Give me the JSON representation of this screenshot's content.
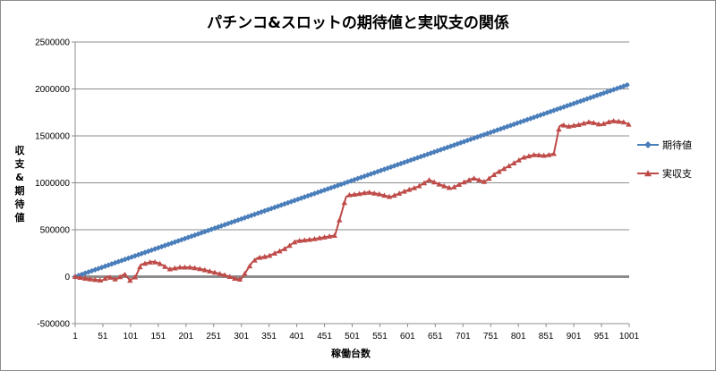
{
  "chart_data": {
    "type": "line",
    "title": "パチンコ&スロットの期待値と実収支の関係",
    "xlabel": "稼働台数",
    "ylabel": "収支&期待値",
    "ylim": [
      -500000,
      2500000
    ],
    "xlim": [
      1,
      1001
    ],
    "xticks": [
      1,
      51,
      101,
      151,
      201,
      251,
      301,
      351,
      401,
      451,
      501,
      551,
      601,
      651,
      701,
      751,
      801,
      851,
      901,
      951,
      1001
    ],
    "xtick_labels": [
      "1",
      "51",
      "101",
      "151",
      "201",
      "251",
      "301",
      "351",
      "401",
      "451",
      "501",
      "551",
      "601",
      "651",
      "701",
      "751",
      "801",
      "851",
      "901",
      "951",
      "1001"
    ],
    "yticks": [
      -500000,
      0,
      500000,
      1000000,
      1500000,
      2000000,
      2500000
    ],
    "ytick_labels": [
      "-500000",
      "0",
      "500000",
      "1000000",
      "1500000",
      "2000000",
      "2500000"
    ],
    "grid": true,
    "legend_position": "right",
    "series": [
      {
        "name": "期待値",
        "color": "#4a7ebb",
        "marker": "diamond",
        "x": [
          1,
          1001
        ],
        "values": [
          0,
          2050000
        ]
      },
      {
        "name": "実収支",
        "color": "#be4b48",
        "marker": "triangle",
        "x": [
          1,
          20,
          35,
          50,
          60,
          75,
          90,
          100,
          110,
          120,
          140,
          150,
          160,
          170,
          190,
          210,
          230,
          250,
          270,
          290,
          300,
          310,
          320,
          330,
          350,
          380,
          400,
          430,
          450,
          470,
          490,
          495,
          510,
          530,
          550,
          570,
          600,
          620,
          640,
          660,
          680,
          700,
          720,
          740,
          760,
          790,
          810,
          830,
          850,
          865,
          875,
          880,
          890,
          910,
          930,
          950,
          970,
          990,
          1001
        ],
        "values": [
          0,
          -20000,
          -30000,
          -40000,
          0,
          -30000,
          30000,
          -40000,
          0,
          130000,
          160000,
          150000,
          120000,
          80000,
          100000,
          100000,
          80000,
          50000,
          20000,
          -20000,
          -30000,
          60000,
          150000,
          200000,
          220000,
          300000,
          380000,
          400000,
          420000,
          440000,
          850000,
          870000,
          880000,
          900000,
          880000,
          850000,
          920000,
          960000,
          1030000,
          980000,
          940000,
          1000000,
          1050000,
          1010000,
          1100000,
          1200000,
          1270000,
          1300000,
          1290000,
          1310000,
          1600000,
          1620000,
          1600000,
          1620000,
          1650000,
          1620000,
          1660000,
          1650000,
          1620000
        ]
      }
    ]
  },
  "zero_line_color": "#8c8c8c",
  "gridline_color": "#8c8c8c"
}
